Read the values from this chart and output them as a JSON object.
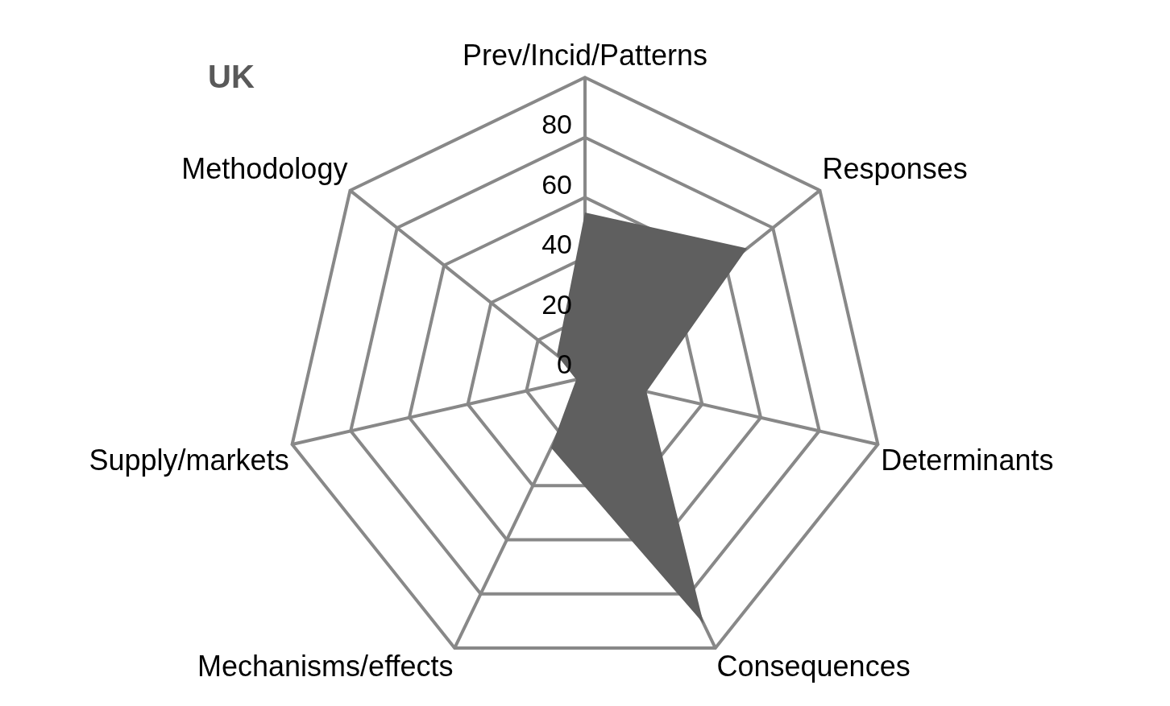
{
  "chart_data": {
    "type": "radar",
    "title": "UK",
    "categories": [
      "Prev/Incid/Patterns",
      "Responses",
      "Determinants",
      "Consequences",
      "Mechanisms/effects",
      "Supply/markets",
      "Methodology"
    ],
    "series": [
      {
        "color": "#5f5f5f",
        "values": [
          55,
          69,
          21,
          91,
          26,
          3,
          12
        ]
      }
    ],
    "ylim": [
      0,
      100
    ],
    "yticks": [
      0,
      20,
      40,
      60,
      80
    ],
    "grid": true,
    "legend": false,
    "marker": "none"
  }
}
